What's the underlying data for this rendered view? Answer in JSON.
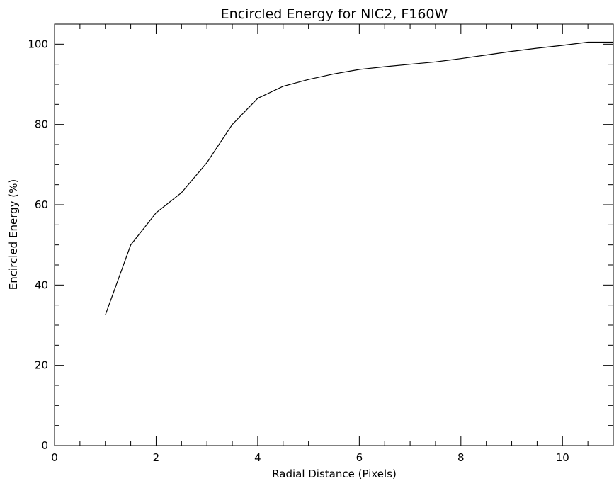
{
  "chart_data": {
    "type": "line",
    "title": "Encircled Energy for NIC2, F160W",
    "xlabel": "Radial Distance (Pixels)",
    "ylabel": "Encircled Energy (%)",
    "xlim": [
      0,
      11
    ],
    "ylim": [
      0,
      105
    ],
    "x_ticks": [
      0,
      2,
      4,
      6,
      8,
      10
    ],
    "y_ticks": [
      0,
      20,
      40,
      60,
      80,
      100
    ],
    "x_tick_labels": [
      "0",
      "2",
      "4",
      "6",
      "8",
      "10"
    ],
    "y_tick_labels": [
      "0",
      "20",
      "40",
      "60",
      "80",
      "100"
    ],
    "x_minor_step": 0.5,
    "y_minor_step": 5,
    "grid": false,
    "legend": "none",
    "series": [
      {
        "x": [
          1.0,
          1.5,
          2.0,
          2.5,
          3.0,
          3.5,
          4.0,
          4.5,
          5.0,
          5.5,
          6.0,
          6.5,
          7.0,
          7.5,
          8.0,
          8.5,
          9.0,
          9.5,
          10.0,
          10.5,
          11.0
        ],
        "y": [
          32.5,
          50.0,
          58.0,
          63.0,
          70.5,
          80.0,
          86.5,
          89.5,
          91.2,
          92.6,
          93.7,
          94.4,
          95.0,
          95.6,
          96.4,
          97.3,
          98.2,
          99.0,
          99.7,
          100.5,
          100.5
        ]
      }
    ]
  },
  "colors": {
    "line": "#000000",
    "axis": "#000000",
    "background": "#ffffff"
  }
}
